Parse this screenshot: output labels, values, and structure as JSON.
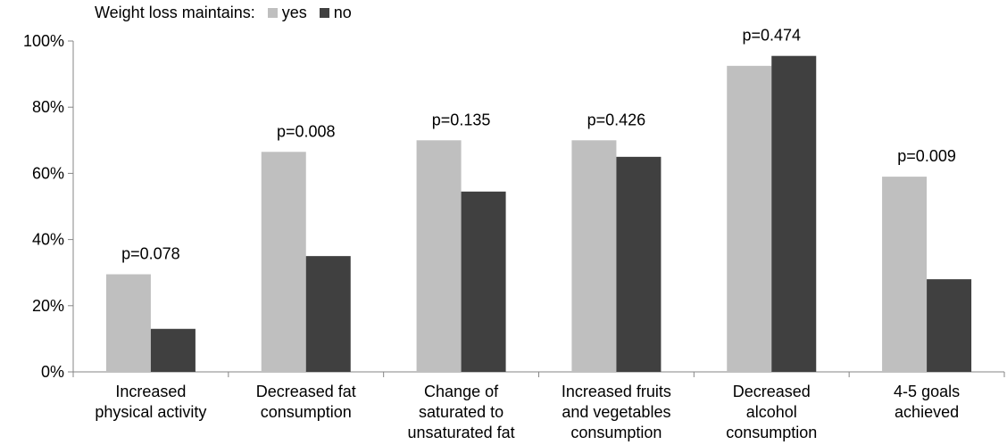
{
  "chart_data": {
    "type": "bar",
    "legend_title": "Weight loss maintains:",
    "legend_position": "top-left",
    "categories": [
      [
        "Increased",
        "physical activity"
      ],
      [
        "Decreased fat",
        "consumption"
      ],
      [
        "Change of",
        "saturated to",
        "unsaturated fat"
      ],
      [
        "Increased fruits",
        "and vegetables",
        "consumption"
      ],
      [
        "Decreased",
        "alcohol",
        "consumption"
      ],
      [
        "4-5 goals",
        "achieved"
      ]
    ],
    "series": [
      {
        "name": "yes",
        "color": "#bfbfbf",
        "values": [
          29.5,
          66.5,
          70,
          70,
          92.5,
          59
        ]
      },
      {
        "name": "no",
        "color": "#404040",
        "values": [
          13,
          35,
          54.5,
          65,
          95.5,
          28
        ]
      }
    ],
    "annotations": [
      "p=0.078",
      "p=0.008",
      "p=0.135",
      "p=0.426",
      "p=0.474",
      "p=0.009"
    ],
    "y_ticks": [
      "0%",
      "20%",
      "40%",
      "60%",
      "80%",
      "100%"
    ],
    "ylim": [
      0,
      100
    ],
    "grid": false,
    "xlabel": "",
    "ylabel": ""
  }
}
